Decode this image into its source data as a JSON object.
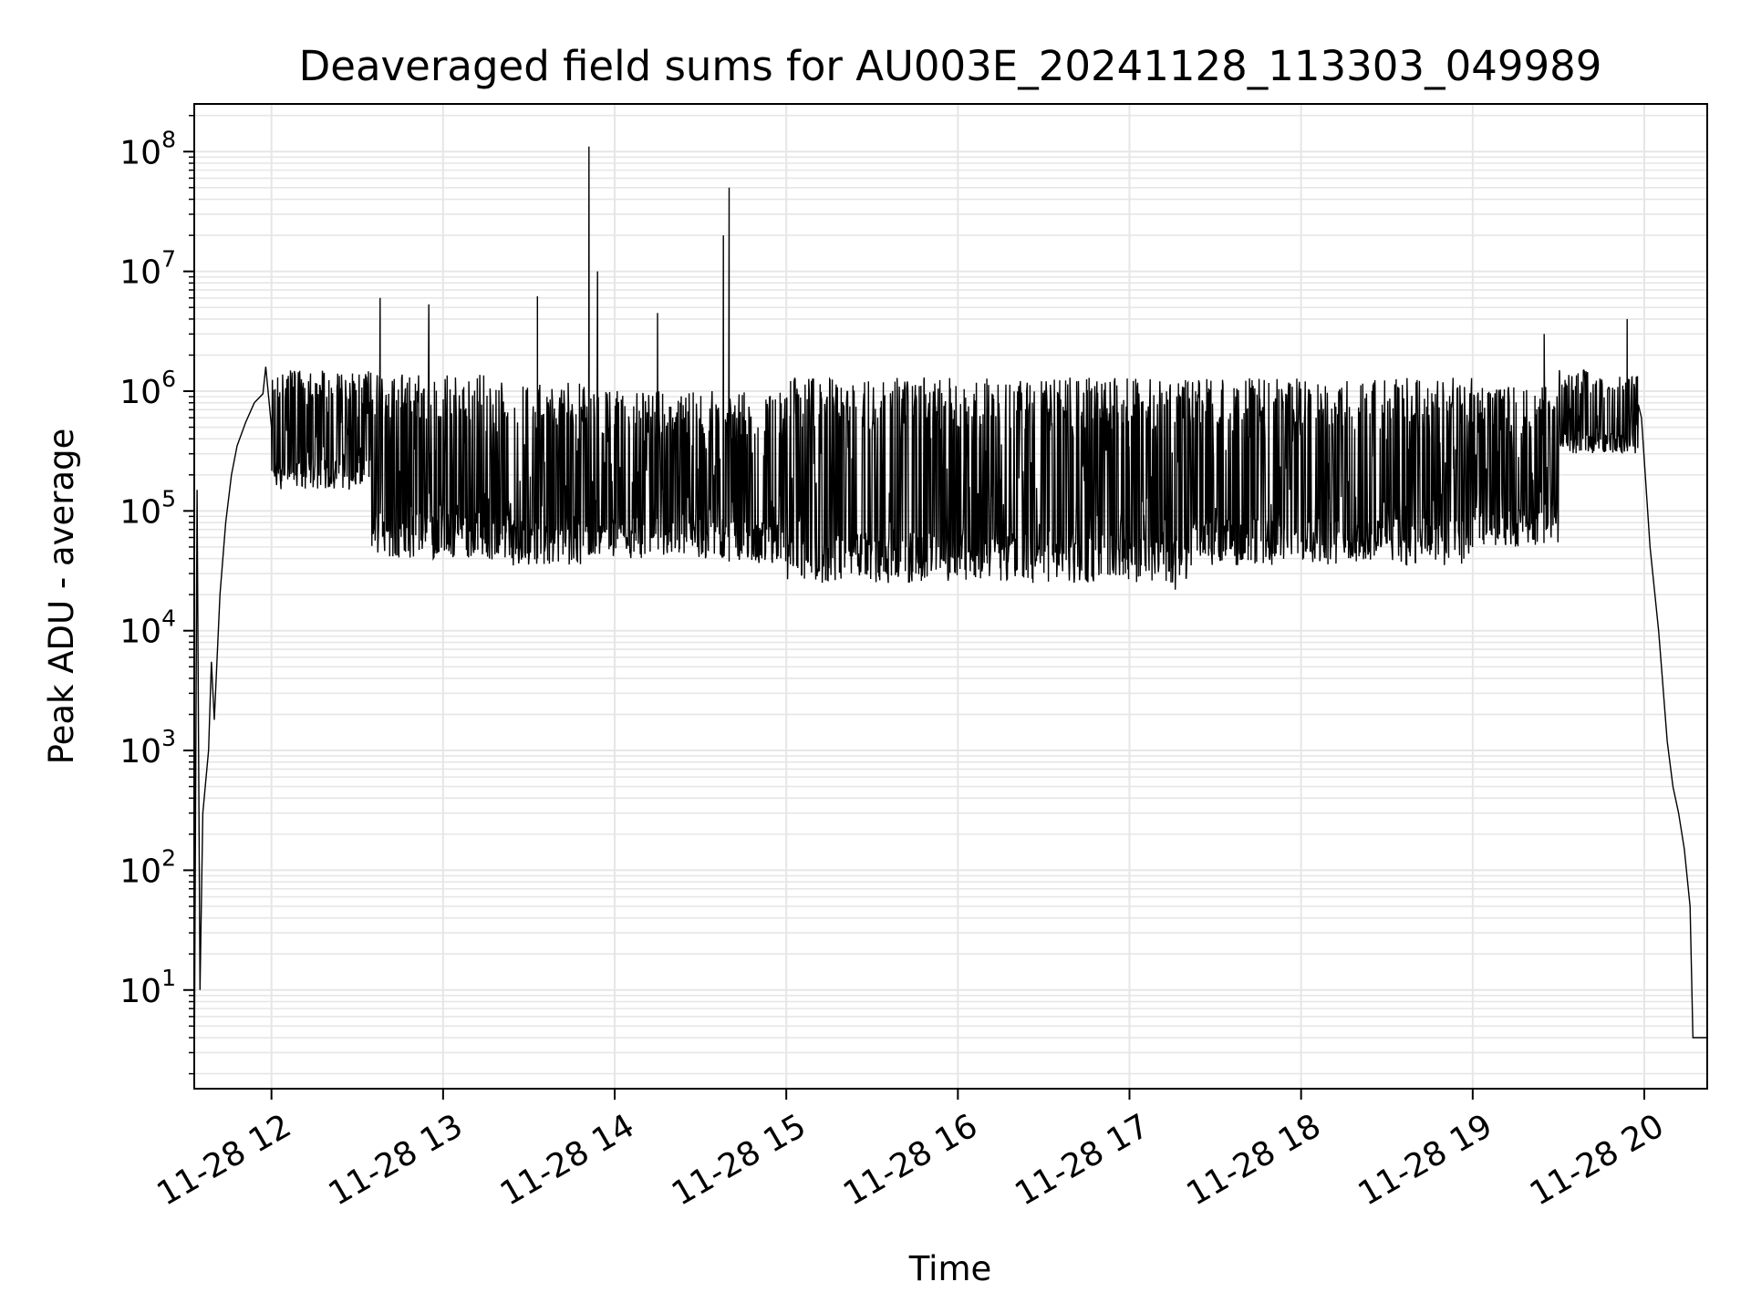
{
  "chart_data": {
    "type": "line",
    "title": "Deaveraged field sums for AU003E_20241128_113303_049989",
    "xlabel": "Time",
    "ylabel": "Peak ADU - average",
    "y_scale": "log",
    "ylim": [
      1.5,
      250000000
    ],
    "xlim": [
      "2024-11-28 11:33",
      "2024-11-28 20:22"
    ],
    "grid": {
      "major": true,
      "minor": true
    },
    "line_color": "#000000",
    "x_ticks": [
      {
        "label": "11-28 12",
        "value": "2024-11-28 12:00"
      },
      {
        "label": "11-28 13",
        "value": "2024-11-28 13:00"
      },
      {
        "label": "11-28 14",
        "value": "2024-11-28 14:00"
      },
      {
        "label": "11-28 15",
        "value": "2024-11-28 15:00"
      },
      {
        "label": "11-28 16",
        "value": "2024-11-28 16:00"
      },
      {
        "label": "11-28 17",
        "value": "2024-11-28 17:00"
      },
      {
        "label": "11-28 18",
        "value": "2024-11-28 18:00"
      },
      {
        "label": "11-28 19",
        "value": "2024-11-28 19:00"
      },
      {
        "label": "11-28 20",
        "value": "2024-11-28 20:00"
      }
    ],
    "y_ticks": [
      {
        "base": "10",
        "exp": "1",
        "value": 10
      },
      {
        "base": "10",
        "exp": "2",
        "value": 100
      },
      {
        "base": "10",
        "exp": "3",
        "value": 1000
      },
      {
        "base": "10",
        "exp": "4",
        "value": 10000
      },
      {
        "base": "10",
        "exp": "5",
        "value": 100000
      },
      {
        "base": "10",
        "exp": "6",
        "value": 1000000
      },
      {
        "base": "10",
        "exp": "7",
        "value": 10000000
      },
      {
        "base": "10",
        "exp": "8",
        "value": 100000000
      }
    ],
    "series": [
      {
        "points": [
          [
            "2024-11-28 11:33",
            1.5
          ],
          [
            "2024-11-28 11:34",
            150000
          ],
          [
            "2024-11-28 11:35",
            10
          ],
          [
            "2024-11-28 11:36",
            300
          ],
          [
            "2024-11-28 11:38",
            1000
          ],
          [
            "2024-11-28 11:39",
            5500
          ],
          [
            "2024-11-28 11:40",
            1800
          ],
          [
            "2024-11-28 11:42",
            20000
          ],
          [
            "2024-11-28 11:44",
            80000
          ],
          [
            "2024-11-28 11:46",
            200000
          ],
          [
            "2024-11-28 11:48",
            350000
          ],
          [
            "2024-11-28 11:51",
            550000
          ],
          [
            "2024-11-28 11:54",
            800000
          ],
          [
            "2024-11-28 11:57",
            950000
          ],
          [
            "2024-11-28 11:58",
            1600000
          ],
          [
            "2024-11-28 12:00",
            500000
          ],
          [
            "2024-11-28 12:38",
            6000000
          ],
          [
            "2024-11-28 12:55",
            5300000
          ],
          [
            "2024-11-28 13:33",
            6200000
          ],
          [
            "2024-11-28 13:51",
            110000000
          ],
          [
            "2024-11-28 13:54",
            10000000
          ],
          [
            "2024-11-28 14:15",
            4500000
          ],
          [
            "2024-11-28 14:38",
            20000000
          ],
          [
            "2024-11-28 14:40",
            50000000
          ],
          [
            "2024-11-28 17:16",
            22000
          ],
          [
            "2024-11-28 19:25",
            3000000
          ],
          [
            "2024-11-28 19:54",
            4000000
          ],
          [
            "2024-11-28 19:59",
            600000
          ],
          [
            "2024-11-28 20:02",
            50000
          ],
          [
            "2024-11-28 20:05",
            10000
          ],
          [
            "2024-11-28 20:06",
            5000
          ],
          [
            "2024-11-28 20:08",
            1200
          ],
          [
            "2024-11-28 20:10",
            500
          ],
          [
            "2024-11-28 20:12",
            300
          ],
          [
            "2024-11-28 20:14",
            150
          ],
          [
            "2024-11-28 20:16",
            50
          ],
          [
            "2024-11-28 20:17",
            4
          ],
          [
            "2024-11-28 20:22",
            4
          ]
        ],
        "bands": [
          {
            "start": "2024-11-28 12:00",
            "end": "2024-11-28 12:35",
            "low": 150000,
            "high": 1500000
          },
          {
            "start": "2024-11-28 12:35",
            "end": "2024-11-28 13:15",
            "low": 40000,
            "high": 1400000
          },
          {
            "start": "2024-11-28 13:15",
            "end": "2024-11-28 13:50",
            "low": 35000,
            "high": 1200000
          },
          {
            "start": "2024-11-28 13:50",
            "end": "2024-11-28 14:40",
            "low": 40000,
            "high": 1000000
          },
          {
            "start": "2024-11-28 14:40",
            "end": "2024-11-28 15:00",
            "low": 35000,
            "high": 1000000
          },
          {
            "start": "2024-11-28 15:00",
            "end": "2024-11-28 17:20",
            "low": 25000,
            "high": 1300000
          },
          {
            "start": "2024-11-28 17:20",
            "end": "2024-11-28 19:00",
            "low": 35000,
            "high": 1300000
          },
          {
            "start": "2024-11-28 19:00",
            "end": "2024-11-28 19:30",
            "low": 50000,
            "high": 1100000
          },
          {
            "start": "2024-11-28 19:30",
            "end": "2024-11-28 19:58",
            "low": 300000,
            "high": 1500000
          }
        ]
      }
    ]
  }
}
